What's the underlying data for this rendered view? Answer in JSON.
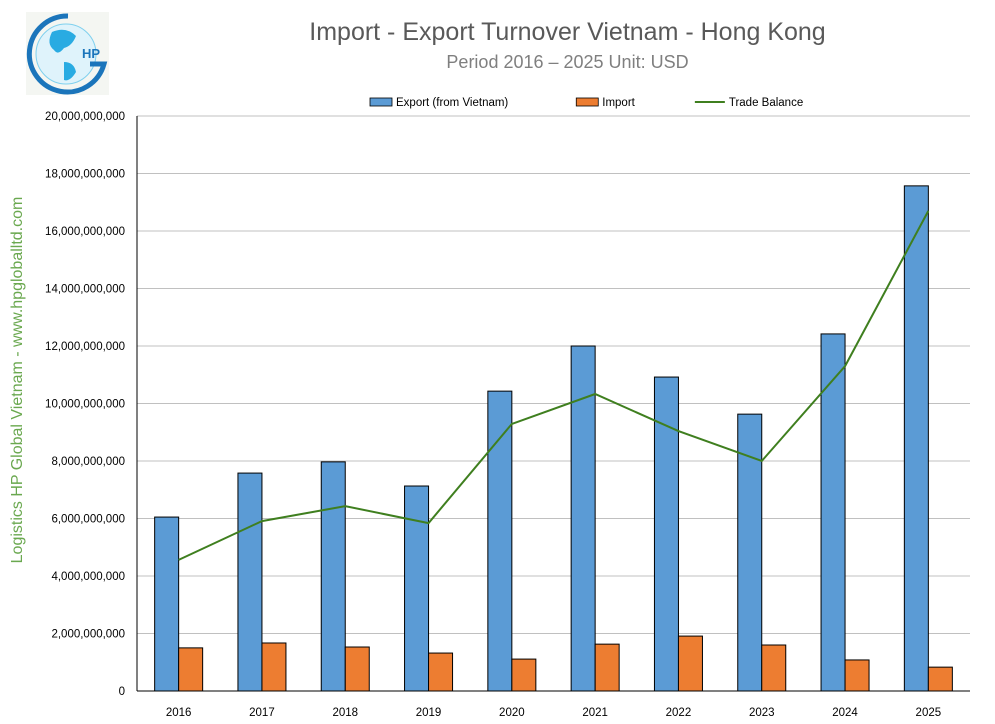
{
  "chart_data": {
    "type": "bar",
    "title": "Import - Export Turnover Vietnam - Hong Kong",
    "subtitle": "Period 2016 – 2025  Unit: USD",
    "side_label": "Logistics HP Global Vietnam - www.hpgloballtd.com",
    "logo_text": "HP",
    "categories": [
      "2016",
      "2017",
      "2018",
      "2019",
      "2020",
      "2021",
      "2022",
      "2023",
      "2024",
      "2025"
    ],
    "series": [
      {
        "name": "Export (from Vietnam)",
        "kind": "bar",
        "color": "#5b9bd5",
        "values": [
          6050000000,
          7580000000,
          7970000000,
          7130000000,
          10430000000,
          12000000000,
          10920000000,
          9630000000,
          12420000000,
          17570000000
        ]
      },
      {
        "name": "Import",
        "kind": "bar",
        "color": "#ed7d31",
        "values": [
          1500000000,
          1670000000,
          1530000000,
          1320000000,
          1110000000,
          1630000000,
          1910000000,
          1600000000,
          1080000000,
          830000000
        ]
      },
      {
        "name": "Trade Balance",
        "kind": "line",
        "color": "#3f7f1f",
        "values": [
          4560000000,
          5910000000,
          6430000000,
          5840000000,
          9290000000,
          10330000000,
          9040000000,
          8000000000,
          11300000000,
          16700000000
        ]
      }
    ],
    "ylim": [
      0,
      20000000000
    ],
    "yticks": [
      "0",
      "2,000,000,000",
      "4,000,000,000",
      "6,000,000,000",
      "8,000,000,000",
      "10,000,000,000",
      "12,000,000,000",
      "14,000,000,000",
      "16,000,000,000",
      "18,000,000,000",
      "20,000,000,000"
    ],
    "grid": true,
    "legend_position": "top"
  }
}
